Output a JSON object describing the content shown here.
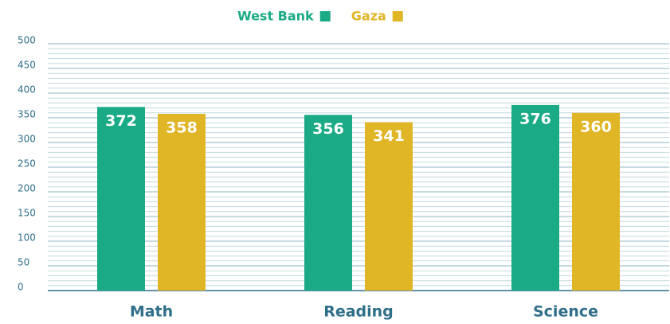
{
  "chart_data": {
    "type": "bar",
    "categories": [
      "Math",
      "Reading",
      "Science"
    ],
    "series": [
      {
        "name": "West Bank",
        "color": "#1aaa85",
        "values": [
          372,
          356,
          376
        ]
      },
      {
        "name": "Gaza",
        "color": "#e0b526",
        "values": [
          358,
          341,
          360
        ]
      }
    ],
    "ylim": [
      0,
      500
    ],
    "yticks": [
      0,
      50,
      100,
      150,
      200,
      250,
      300,
      350,
      400,
      450,
      500
    ],
    "grid": true,
    "legend": "top"
  }
}
